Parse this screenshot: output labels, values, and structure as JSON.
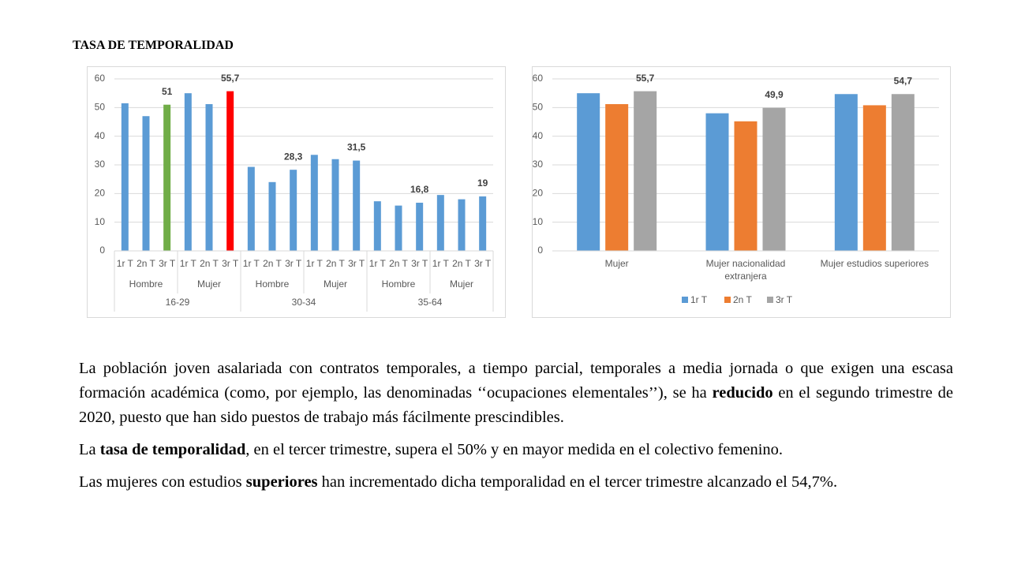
{
  "title": "TASA DE TEMPORALIDAD",
  "chart_data": [
    {
      "type": "bar",
      "categories": [
        "1r T",
        "2n T",
        "3r T",
        "1r T",
        "2n T",
        "3r T",
        "1r T",
        "2n T",
        "3r T",
        "1r T",
        "2n T",
        "3r T",
        "1r T",
        "2n T",
        "3r T",
        "1r T",
        "2n T",
        "3r T"
      ],
      "groups": [
        "Hombre",
        "Mujer",
        "Hombre",
        "Mujer",
        "Hombre",
        "Mujer"
      ],
      "supergroups": [
        "16-29",
        "30-34",
        "35-64"
      ],
      "values": [
        51.5,
        47,
        51,
        55,
        51.2,
        55.7,
        29.3,
        24,
        28.3,
        33.5,
        32,
        31.5,
        17.3,
        15.8,
        16.8,
        19.5,
        18,
        19
      ],
      "value_labels": [
        null,
        null,
        "51",
        null,
        null,
        "55,7",
        null,
        null,
        "28,3",
        null,
        null,
        "31,5",
        null,
        null,
        "16,8",
        null,
        null,
        "19"
      ],
      "bar_colors": [
        "#5b9bd5",
        "#5b9bd5",
        "#70ad47",
        "#5b9bd5",
        "#5b9bd5",
        "#ff0000",
        "#5b9bd5",
        "#5b9bd5",
        "#5b9bd5",
        "#5b9bd5",
        "#5b9bd5",
        "#5b9bd5",
        "#5b9bd5",
        "#5b9bd5",
        "#5b9bd5",
        "#5b9bd5",
        "#5b9bd5",
        "#5b9bd5"
      ],
      "ylim": [
        0,
        60
      ],
      "yticks": [
        0,
        10,
        20,
        30,
        40,
        50,
        60
      ],
      "grid": true
    },
    {
      "type": "bar",
      "categories": [
        "Mujer",
        "Mujer nacionalidad extranjera",
        "Mujer estudios superiores"
      ],
      "series": [
        {
          "name": "1r T",
          "color": "#5b9bd5",
          "values": [
            55,
            48,
            54.7
          ]
        },
        {
          "name": "2n T",
          "color": "#ed7d31",
          "values": [
            51.2,
            45.2,
            50.8
          ]
        },
        {
          "name": "3r T",
          "color": "#a5a5a5",
          "values": [
            55.7,
            49.9,
            54.7
          ],
          "value_labels": [
            "55,7",
            "49,9",
            "54,7"
          ]
        }
      ],
      "ylim": [
        0,
        60
      ],
      "yticks": [
        0,
        10,
        20,
        30,
        40,
        50,
        60
      ],
      "grid": true,
      "legend": "bottom"
    }
  ],
  "paragraphs": [
    [
      {
        "text": "La población joven asalariada con contratos temporales, a tiempo parcial, temporales a media jornada o que exigen una escasa formación académica (como, por ejemplo, las denominadas ‘‘ocupaciones elementales’’), se ha ",
        "bold": false
      },
      {
        "text": "reducido",
        "bold": true
      },
      {
        "text": " en el segundo trimestre de 2020, puesto que han sido  puestos de trabajo más fácilmente prescindibles.",
        "bold": false
      }
    ],
    [
      {
        "text": "La ",
        "bold": false
      },
      {
        "text": "tasa de temporalidad",
        "bold": true
      },
      {
        "text": ", en el tercer trimestre, supera el 50% y en mayor medida en el colectivo femenino.",
        "bold": false
      }
    ],
    [
      {
        "text": "Las mujeres con estudios ",
        "bold": false
      },
      {
        "text": "superiores",
        "bold": true
      },
      {
        "text": " han incrementado dicha temporalidad en el tercer trimestre alcanzado el 54,7%.",
        "bold": false
      }
    ]
  ]
}
